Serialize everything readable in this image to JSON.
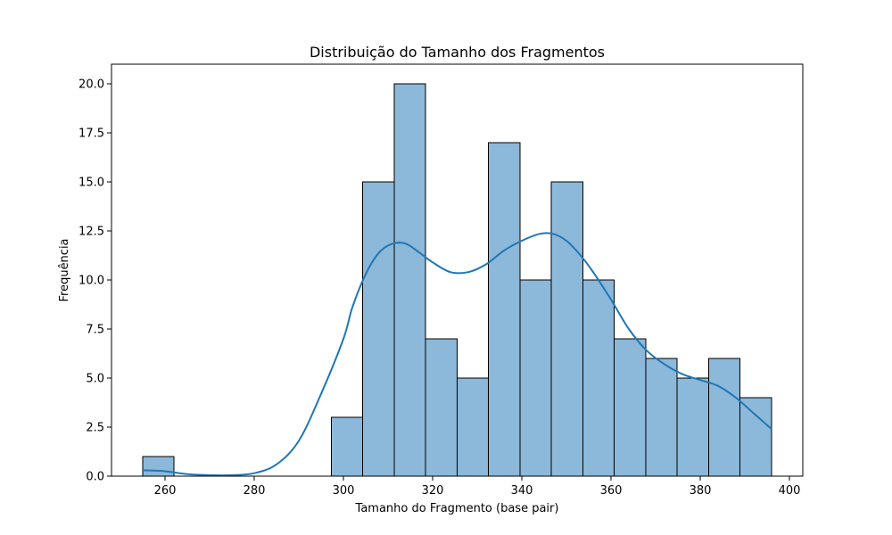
{
  "chart_data": {
    "type": "bar",
    "title": "Distribuição do Tamanho dos Fragmentos",
    "xlabel": "Tamanho do Fragmento (base pair)",
    "ylabel": "Frequência",
    "xlim": [
      248,
      403
    ],
    "ylim": [
      0,
      21
    ],
    "grid": false,
    "x_ticks": [
      260,
      280,
      300,
      320,
      340,
      360,
      380,
      400
    ],
    "x_tick_labels": [
      "260",
      "280",
      "300",
      "320",
      "340",
      "360",
      "380",
      "400"
    ],
    "y_ticks": [
      0,
      2.5,
      5,
      7.5,
      10,
      12.5,
      15,
      17.5,
      20
    ],
    "y_tick_labels": [
      "0.0",
      "2.5",
      "5.0",
      "7.5",
      "10.0",
      "12.5",
      "15.0",
      "17.5",
      "20.0"
    ],
    "bins": [
      {
        "x0": 255.0,
        "x1": 262.0,
        "count": 1
      },
      {
        "x0": 262.0,
        "x1": 269.0,
        "count": 0
      },
      {
        "x0": 269.0,
        "x1": 276.1,
        "count": 0
      },
      {
        "x0": 276.1,
        "x1": 283.1,
        "count": 0
      },
      {
        "x0": 283.1,
        "x1": 290.2,
        "count": 0
      },
      {
        "x0": 290.2,
        "x1": 297.3,
        "count": 0
      },
      {
        "x0": 297.3,
        "x1": 304.3,
        "count": 3
      },
      {
        "x0": 304.3,
        "x1": 311.4,
        "count": 15
      },
      {
        "x0": 311.4,
        "x1": 318.4,
        "count": 20
      },
      {
        "x0": 318.4,
        "x1": 325.5,
        "count": 7
      },
      {
        "x0": 325.5,
        "x1": 332.5,
        "count": 5
      },
      {
        "x0": 332.5,
        "x1": 339.6,
        "count": 17
      },
      {
        "x0": 339.6,
        "x1": 346.6,
        "count": 10
      },
      {
        "x0": 346.6,
        "x1": 353.7,
        "count": 15
      },
      {
        "x0": 353.7,
        "x1": 360.7,
        "count": 10
      },
      {
        "x0": 360.7,
        "x1": 367.8,
        "count": 7
      },
      {
        "x0": 367.8,
        "x1": 374.8,
        "count": 6
      },
      {
        "x0": 374.8,
        "x1": 381.9,
        "count": 5
      },
      {
        "x0": 381.9,
        "x1": 388.9,
        "count": 6
      },
      {
        "x0": 388.9,
        "x1": 396.0,
        "count": 4
      }
    ],
    "kde": {
      "x": [
        255,
        260,
        265,
        270,
        275,
        280,
        285,
        290,
        295,
        300,
        302,
        305,
        308,
        311,
        314,
        317,
        320,
        324,
        328,
        332,
        336,
        340,
        344,
        347,
        350,
        353,
        356,
        360,
        364,
        368,
        372,
        376,
        380,
        384,
        388,
        392,
        396
      ],
      "y": [
        0.3,
        0.25,
        0.1,
        0.05,
        0.05,
        0.15,
        0.6,
        1.8,
        4.2,
        7.0,
        8.6,
        10.3,
        11.4,
        11.85,
        11.85,
        11.4,
        10.9,
        10.4,
        10.4,
        10.8,
        11.5,
        12.0,
        12.35,
        12.35,
        12.0,
        11.3,
        10.4,
        9.0,
        7.5,
        6.4,
        5.7,
        5.2,
        4.9,
        4.6,
        4.0,
        3.2,
        2.4
      ]
    },
    "colors": {
      "bar_fill": "#8cb8d9",
      "bar_edge": "#000000",
      "kde_line": "#1f77b4"
    }
  }
}
